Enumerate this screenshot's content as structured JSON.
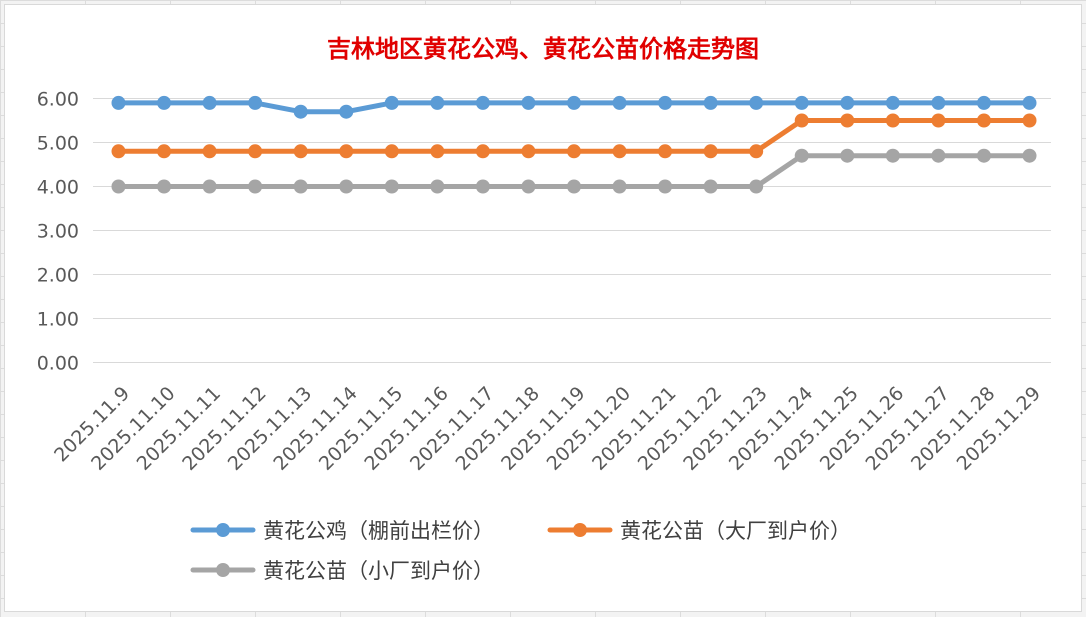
{
  "chart_data": {
    "type": "line",
    "title": "吉林地区黄花公鸡、黄花公苗价格走势图",
    "xlabel": "",
    "ylabel": "",
    "ylim": [
      0,
      6
    ],
    "y_ticks": [
      "0.00",
      "1.00",
      "2.00",
      "3.00",
      "4.00",
      "5.00",
      "6.00"
    ],
    "categories": [
      "2025.11.9",
      "2025.11.10",
      "2025.11.11",
      "2025.11.12",
      "2025.11.13",
      "2025.11.14",
      "2025.11.15",
      "2025.11.16",
      "2025.11.17",
      "2025.11.18",
      "2025.11.19",
      "2025.11.20",
      "2025.11.21",
      "2025.11.22",
      "2025.11.23",
      "2025.11.24",
      "2025.11.25",
      "2025.11.26",
      "2025.11.27",
      "2025.11.28",
      "2025.11.29"
    ],
    "series": [
      {
        "name": "黄花公鸡（棚前出栏价）",
        "color": "#5b9bd5",
        "values": [
          5.9,
          5.9,
          5.9,
          5.9,
          5.7,
          5.7,
          5.9,
          5.9,
          5.9,
          5.9,
          5.9,
          5.9,
          5.9,
          5.9,
          5.9,
          5.9,
          5.9,
          5.9,
          5.9,
          5.9,
          5.9
        ]
      },
      {
        "name": "黄花公苗（大厂到户价）",
        "color": "#ed7d31",
        "values": [
          4.8,
          4.8,
          4.8,
          4.8,
          4.8,
          4.8,
          4.8,
          4.8,
          4.8,
          4.8,
          4.8,
          4.8,
          4.8,
          4.8,
          4.8,
          5.5,
          5.5,
          5.5,
          5.5,
          5.5,
          5.5
        ]
      },
      {
        "name": "黄花公苗（小厂到户价）",
        "color": "#a5a5a5",
        "values": [
          4.0,
          4.0,
          4.0,
          4.0,
          4.0,
          4.0,
          4.0,
          4.0,
          4.0,
          4.0,
          4.0,
          4.0,
          4.0,
          4.0,
          4.0,
          4.7,
          4.7,
          4.7,
          4.7,
          4.7,
          4.7
        ]
      }
    ],
    "grid": true,
    "legend_position": "bottom"
  }
}
